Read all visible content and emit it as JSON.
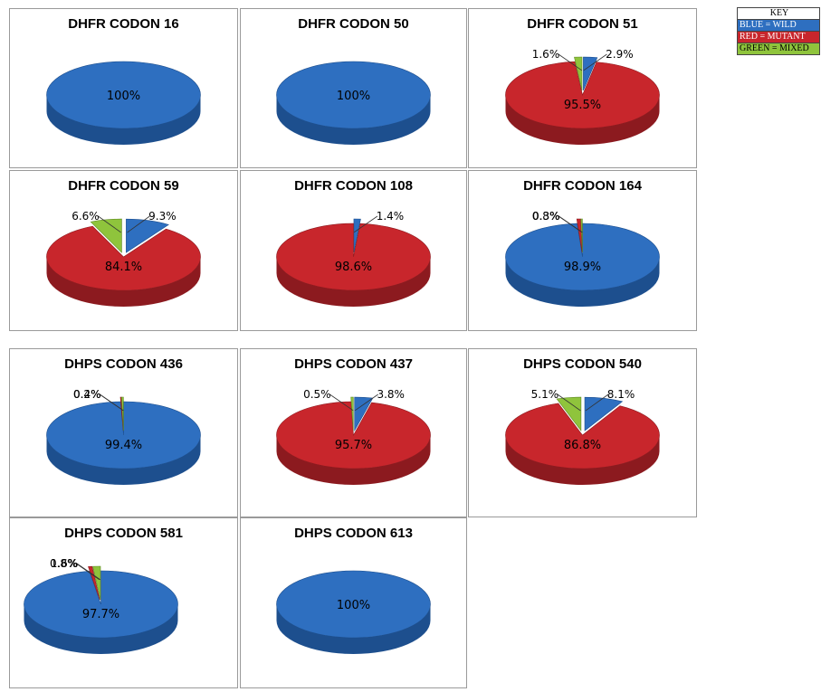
{
  "key": {
    "title": "KEY",
    "blue": "BLUE = WILD",
    "red": "RED = MUTANT",
    "green": "GREEN = MIXED"
  },
  "colors": {
    "wild": "#2e6fc0",
    "mutant": "#c8262c",
    "mixed": "#8fc43c"
  },
  "chart_data": [
    {
      "type": "pie",
      "title": "DHFR CODON 16",
      "categories": [
        "Wild"
      ],
      "values": [
        100
      ],
      "labels": [
        "100%"
      ]
    },
    {
      "type": "pie",
      "title": "DHFR CODON 50",
      "categories": [
        "Wild"
      ],
      "values": [
        100
      ],
      "labels": [
        "100%"
      ]
    },
    {
      "type": "pie",
      "title": "DHFR CODON 51",
      "categories": [
        "Wild",
        "Mutant",
        "Mixed"
      ],
      "values": [
        2.9,
        95.5,
        1.6
      ],
      "labels": [
        "2.9%",
        "95.5%",
        "1.6%"
      ]
    },
    {
      "type": "pie",
      "title": "DHFR CODON 59",
      "categories": [
        "Wild",
        "Mutant",
        "Mixed"
      ],
      "values": [
        9.3,
        84.1,
        6.6
      ],
      "labels": [
        "9.3%",
        "84.1%",
        "6.6%"
      ]
    },
    {
      "type": "pie",
      "title": "DHFR CODON 108",
      "categories": [
        "Wild",
        "Mutant"
      ],
      "values": [
        1.4,
        98.6
      ],
      "labels": [
        "1.4%",
        "98.6%"
      ]
    },
    {
      "type": "pie",
      "title": "DHFR CODON 164",
      "categories": [
        "Wild",
        "Mutant",
        "Mixed"
      ],
      "values": [
        98.9,
        0.8,
        0.3
      ],
      "labels": [
        "98.9%",
        "0.8%",
        "0.3%"
      ]
    },
    {
      "type": "pie",
      "title": "DHPS CODON 436",
      "categories": [
        "Wild",
        "Mutant",
        "Mixed"
      ],
      "values": [
        99.4,
        0.2,
        0.4
      ],
      "labels": [
        "99.4%",
        "0.2%",
        "0.4%"
      ]
    },
    {
      "type": "pie",
      "title": "DHPS CODON 437",
      "categories": [
        "Wild",
        "Mutant",
        "Mixed"
      ],
      "values": [
        3.8,
        95.7,
        0.5
      ],
      "labels": [
        "3.8%",
        "95.7%",
        "0.5%"
      ]
    },
    {
      "type": "pie",
      "title": "DHPS CODON 540",
      "categories": [
        "Wild",
        "Mutant",
        "Mixed"
      ],
      "values": [
        8.1,
        86.8,
        5.1
      ],
      "labels": [
        "8.1%",
        "86.8%",
        "5.1%"
      ]
    },
    {
      "type": "pie",
      "title": "DHPS CODON 581",
      "categories": [
        "Wild",
        "Mutant",
        "Mixed"
      ],
      "values": [
        97.7,
        0.8,
        1.6
      ],
      "labels": [
        "97.7%",
        "0.8%",
        "1.6%"
      ]
    },
    {
      "type": "pie",
      "title": "DHPS CODON 613",
      "categories": [
        "Wild"
      ],
      "values": [
        100
      ],
      "labels": [
        "100%"
      ]
    }
  ]
}
